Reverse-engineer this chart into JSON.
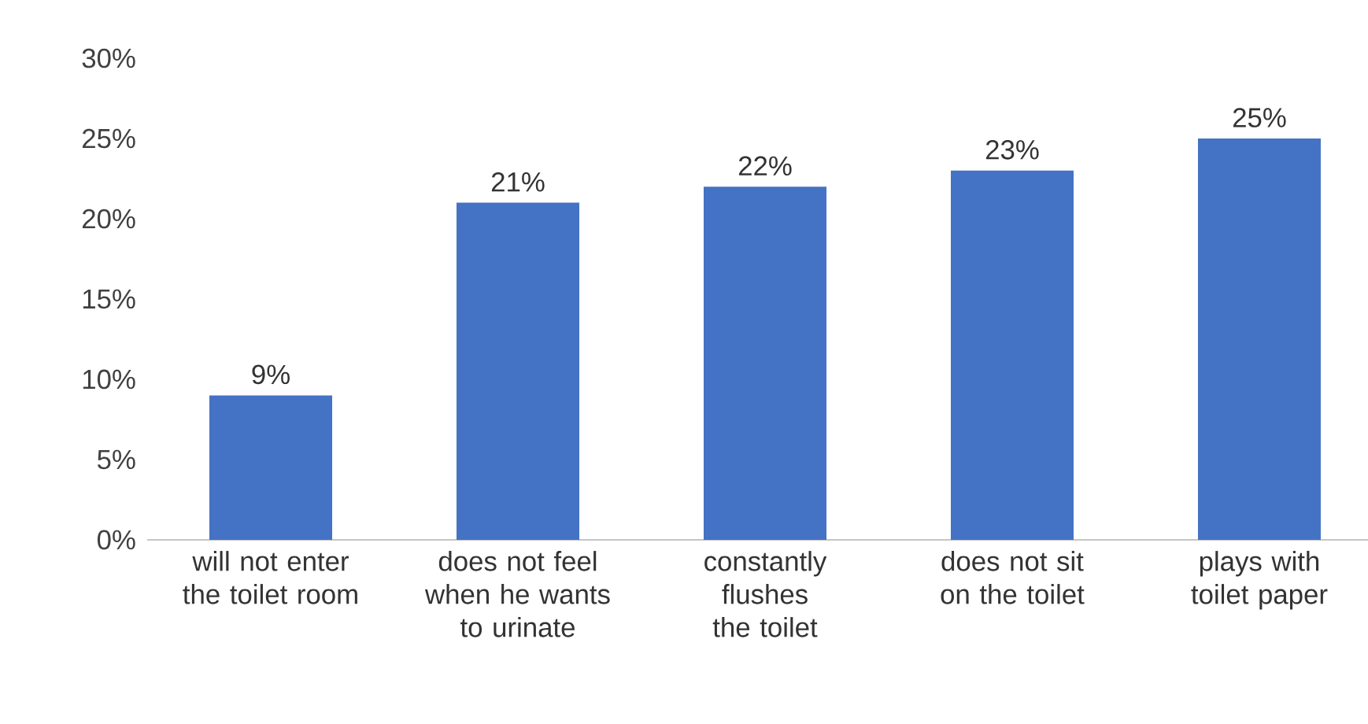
{
  "chart_data": {
    "type": "bar",
    "categories": [
      "will not enter the toilet room",
      "does not feel when he wants to urinate",
      "constantly flushes the toilet",
      "does not sit on the toilet",
      "plays with toilet paper"
    ],
    "values": [
      9,
      21,
      22,
      23,
      25
    ],
    "value_labels": [
      "9%",
      "21%",
      "22%",
      "23%",
      "25%"
    ],
    "color": "#4472c4",
    "ylim": [
      0,
      30
    ],
    "yticks": [
      {
        "value": 0,
        "label": "0%"
      },
      {
        "value": 5,
        "label": "5%"
      },
      {
        "value": 10,
        "label": "10%"
      },
      {
        "value": 15,
        "label": "15%"
      },
      {
        "value": 20,
        "label": "20%"
      },
      {
        "value": 25,
        "label": "25%"
      },
      {
        "value": 30,
        "label": "30%"
      }
    ]
  }
}
